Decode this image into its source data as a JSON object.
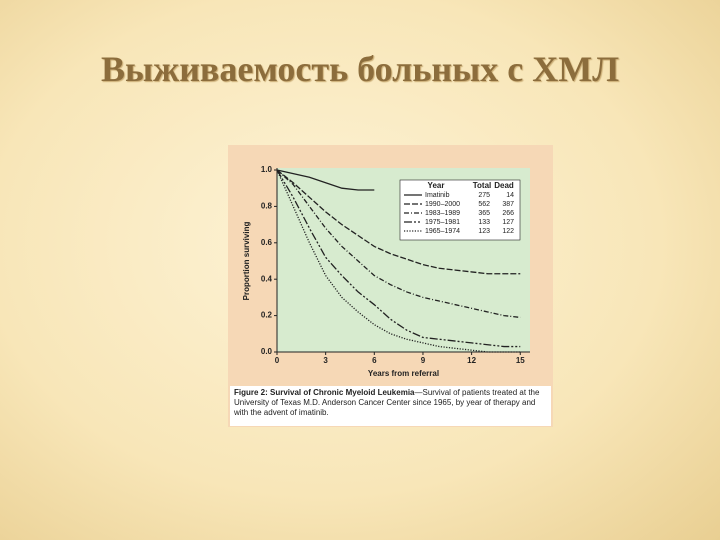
{
  "slide_title": "Выживаемость больных с ХМЛ",
  "chart_data": {
    "type": "line",
    "xlabel": "Years from referral",
    "ylabel": "Proportion surviving",
    "x": [
      0,
      1,
      2,
      3,
      4,
      5,
      6,
      7,
      8,
      9,
      10,
      11,
      12,
      13,
      14,
      15
    ],
    "xlim": [
      0,
      15.6
    ],
    "xticks": [
      0,
      3,
      6,
      9,
      12,
      15
    ],
    "ylim": [
      0,
      1
    ],
    "yticks": [
      {
        "value": 0,
        "label": "0.0"
      },
      0.2,
      0.4,
      0.6,
      0.8,
      {
        "value": 1,
        "label": "1.0"
      }
    ],
    "legend_headers": [
      "Year",
      "Total",
      "Dead"
    ],
    "series": [
      {
        "name": "Imatinib",
        "total": 275,
        "dead": 14,
        "color": "#222222",
        "line_style": "solid",
        "values": [
          1,
          0.98,
          0.96,
          0.93,
          0.9,
          0.89,
          0.89,
          null,
          null,
          null,
          null,
          null,
          null,
          null,
          null,
          null
        ]
      },
      {
        "name": "1990–2000",
        "total": 562,
        "dead": 387,
        "color": "#222222",
        "line_style": "dashed",
        "values": [
          1,
          0.93,
          0.85,
          0.77,
          0.7,
          0.64,
          0.58,
          0.54,
          0.51,
          0.48,
          0.46,
          0.45,
          0.44,
          0.43,
          0.43,
          0.43
        ]
      },
      {
        "name": "1983–1989",
        "total": 365,
        "dead": 266,
        "color": "#222222",
        "line_style": "dashdot",
        "values": [
          1,
          0.92,
          0.8,
          0.68,
          0.58,
          0.5,
          0.42,
          0.37,
          0.33,
          0.3,
          0.28,
          0.26,
          0.24,
          0.22,
          0.2,
          0.19
        ]
      },
      {
        "name": "1975–1981",
        "total": 133,
        "dead": 127,
        "color": "#222222",
        "line_style": "longdash",
        "values": [
          1,
          0.85,
          0.68,
          0.52,
          0.42,
          0.33,
          0.26,
          0.18,
          0.12,
          0.08,
          0.07,
          0.06,
          0.05,
          0.04,
          0.03,
          0.03
        ]
      },
      {
        "name": "1965–1974",
        "total": 123,
        "dead": 122,
        "color": "#222222",
        "line_style": "dotted",
        "values": [
          1,
          0.8,
          0.6,
          0.42,
          0.3,
          0.22,
          0.15,
          0.1,
          0.07,
          0.05,
          0.03,
          0.02,
          0.01,
          0,
          0,
          0
        ]
      }
    ],
    "caption_bold": "Figure 2: Survival of Chronic Myeloid Leukemia",
    "caption": "—Survival of patients treated at the University of Texas M.D. Anderson Cancer Center since 1965, by year of therapy and with the advent of imatinib."
  }
}
